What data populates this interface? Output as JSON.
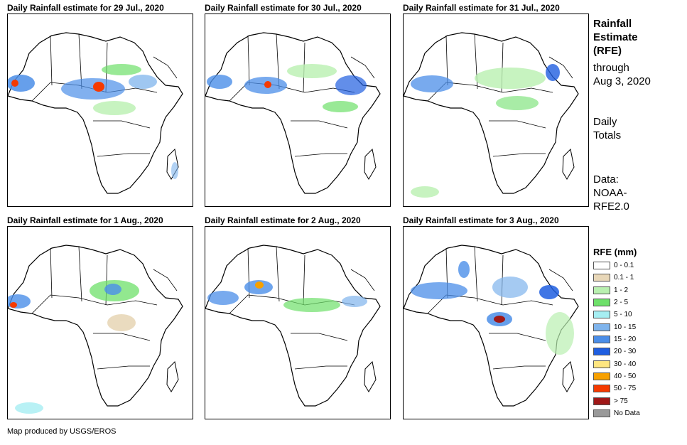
{
  "panels": [
    {
      "title": "Daily Rainfall estimate for 29 Jul., 2020"
    },
    {
      "title": "Daily Rainfall estimate for 30 Jul., 2020"
    },
    {
      "title": "Daily Rainfall estimate for 31 Jul., 2020"
    },
    {
      "title": "Daily Rainfall estimate for 1 Aug., 2020"
    },
    {
      "title": "Daily Rainfall estimate for 2 Aug., 2020"
    },
    {
      "title": "Daily Rainfall estimate for 3 Aug., 2020"
    }
  ],
  "side": {
    "heading_lines": [
      "Rainfall",
      "Estimate",
      "(RFE)"
    ],
    "through_lines": [
      "through",
      "Aug 3, 2020"
    ],
    "totals_lines": [
      "Daily",
      "Totals"
    ],
    "data_lines": [
      "Data:",
      "NOAA-",
      "RFE2.0"
    ]
  },
  "legend": {
    "title": "RFE (mm)",
    "items": [
      {
        "label": "0 - 0.1",
        "color": "#ffffff"
      },
      {
        "label": "0.1 - 1",
        "color": "#e8d7b8"
      },
      {
        "label": "1 - 2",
        "color": "#b9f0b0"
      },
      {
        "label": "2 - 5",
        "color": "#6ee06a"
      },
      {
        "label": "5 - 10",
        "color": "#a6eef2"
      },
      {
        "label": "10 - 15",
        "color": "#7fb4ec"
      },
      {
        "label": "15 - 20",
        "color": "#4b8ee8"
      },
      {
        "label": "20 - 30",
        "color": "#1f5ee0"
      },
      {
        "label": "30 - 40",
        "color": "#ffe680"
      },
      {
        "label": "40 - 50",
        "color": "#f7a000"
      },
      {
        "label": "50 - 75",
        "color": "#f53a00"
      },
      {
        "label": "> 75",
        "color": "#a01818"
      },
      {
        "label": "No Data",
        "color": "#999999"
      }
    ]
  },
  "credit": "Map produced by USGS/EROS"
}
